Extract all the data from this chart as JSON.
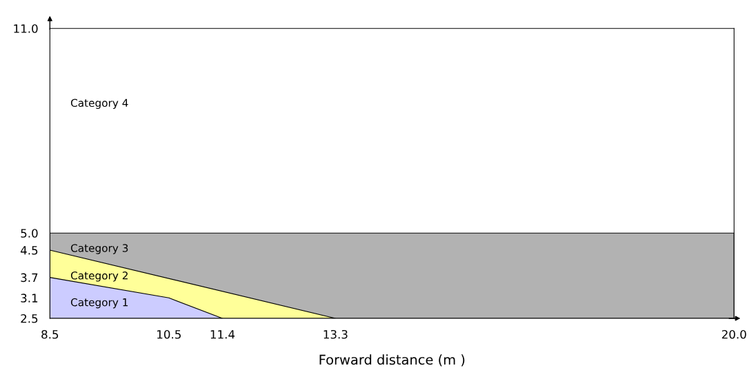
{
  "chart_data": {
    "type": "area",
    "xlabel": "Forward distance (m )",
    "annotations": [
      "Category 4"
    ],
    "series": [
      {
        "name": "Category 3",
        "color": "#b2b2b2",
        "x": [
          8.5,
          20.0
        ],
        "values": [
          5.0,
          5.0
        ]
      },
      {
        "name": "Category 2",
        "color": "#ffff99",
        "x": [
          8.5,
          13.3
        ],
        "values": [
          4.5,
          2.5
        ]
      },
      {
        "name": "Category 1",
        "color": "#ccccff",
        "x": [
          8.5,
          10.5,
          11.4
        ],
        "values": [
          3.7,
          3.1,
          2.5
        ]
      }
    ],
    "xlim": [
      8.5,
      20.0
    ],
    "ylim": [
      2.5,
      11.0
    ],
    "xticks": [
      8.5,
      10.5,
      11.4,
      13.3,
      {
        "value": 20,
        "label": "20.0"
      }
    ],
    "yticks": [
      2.5,
      3.1,
      3.7,
      4.5,
      {
        "value": 5,
        "label": "5.0"
      },
      {
        "value": 11,
        "label": "11.0"
      }
    ],
    "grid": false,
    "legend": false
  }
}
